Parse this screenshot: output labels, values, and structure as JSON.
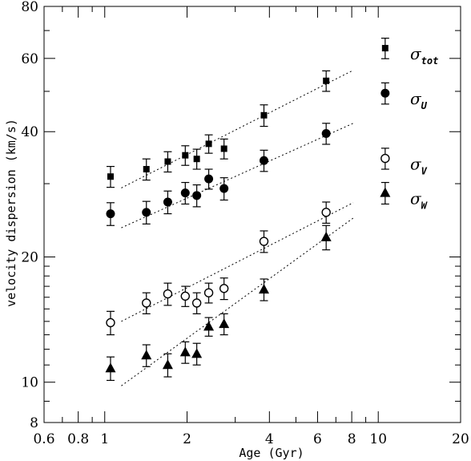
{
  "chart_data": {
    "type": "scatter",
    "title": "",
    "xlabel": "Age (Gyr)",
    "ylabel": "velocity dispersion (km/s)",
    "xscale": "log",
    "yscale": "log",
    "xlim": [
      0.6,
      20
    ],
    "ylim": [
      8,
      80
    ],
    "xticks": [
      {
        "value": 0.6,
        "label": "0.6"
      },
      {
        "value": 0.8,
        "label": "0.8"
      },
      {
        "value": 1,
        "label": "1"
      },
      {
        "value": 2,
        "label": "2"
      },
      {
        "value": 4,
        "label": "4"
      },
      {
        "value": 6,
        "label": "6"
      },
      {
        "value": 8,
        "label": "8"
      },
      {
        "value": 10,
        "label": "10"
      },
      {
        "value": 20,
        "label": "20"
      }
    ],
    "yticks": [
      {
        "value": 8,
        "label": "8"
      },
      {
        "value": 10,
        "label": "10"
      },
      {
        "value": 20,
        "label": "20"
      },
      {
        "value": 40,
        "label": "40"
      },
      {
        "value": 60,
        "label": "60"
      },
      {
        "value": 80,
        "label": "80"
      }
    ],
    "x": [
      1.05,
      1.42,
      1.7,
      1.97,
      2.17,
      2.4,
      2.73,
      3.82,
      6.45
    ],
    "series": [
      {
        "name": "σ_tot",
        "label_main": "σ",
        "label_sub": "tot",
        "marker": "square",
        "y": [
          31.2,
          32.5,
          33.9,
          35.1,
          34.4,
          37.4,
          36.4,
          43.8,
          53.0
        ],
        "yerr": [
          1.8,
          1.9,
          1.9,
          1.9,
          1.9,
          1.9,
          2.0,
          2.6,
          3.0
        ],
        "fit": {
          "x": [
            1.15,
            8.1
          ],
          "y": [
            29.3,
            56.2
          ]
        }
      },
      {
        "name": "σ_U",
        "label_main": "σ",
        "label_sub": "U",
        "marker": "filled-circle",
        "y": [
          25.4,
          25.6,
          27.1,
          28.5,
          28.1,
          30.8,
          29.2,
          34.1,
          39.6
        ],
        "yerr": [
          1.6,
          1.6,
          1.7,
          1.7,
          1.7,
          1.7,
          1.8,
          2.0,
          2.3
        ],
        "fit": {
          "x": [
            1.15,
            8.1
          ],
          "y": [
            23.5,
            41.9
          ]
        }
      },
      {
        "name": "σ_V",
        "label_main": "σ",
        "label_sub": "V",
        "marker": "open-circle",
        "y": [
          13.9,
          15.5,
          16.3,
          16.1,
          15.5,
          16.4,
          16.8,
          21.8,
          25.6
        ],
        "yerr": [
          0.9,
          0.9,
          1.0,
          0.9,
          0.9,
          0.9,
          1.0,
          1.3,
          1.5
        ],
        "fit": {
          "x": [
            1.15,
            8.1
          ],
          "y": [
            14.0,
            27.0
          ]
        }
      },
      {
        "name": "σ_W",
        "label_main": "σ",
        "label_sub": "W",
        "marker": "filled-triangle",
        "y": [
          10.8,
          11.6,
          11.0,
          11.8,
          11.7,
          13.6,
          13.8,
          16.7,
          22.3
        ],
        "yerr": [
          0.7,
          0.7,
          0.7,
          0.7,
          0.7,
          0.7,
          0.8,
          1.0,
          1.5
        ],
        "fit": {
          "x": [
            1.15,
            8.1
          ],
          "y": [
            9.8,
            24.8
          ]
        }
      }
    ],
    "legend": [
      {
        "marker": "square",
        "main": "σ",
        "sub": "tot",
        "x": 10.6,
        "y": 63.5,
        "yerr": 3.6
      },
      {
        "marker": "filled-circle",
        "main": "σ",
        "sub": "U",
        "x": 10.6,
        "y": 49.5,
        "yerr": 2.9
      },
      {
        "marker": "open-circle",
        "main": "σ",
        "sub": "V",
        "x": 10.6,
        "y": 34.5,
        "yerr": 2.0
      },
      {
        "marker": "filled-triangle",
        "main": "σ",
        "sub": "W",
        "x": 10.6,
        "y": 28.5,
        "yerr": 1.7
      }
    ],
    "grid": false,
    "legend_position": "right"
  }
}
